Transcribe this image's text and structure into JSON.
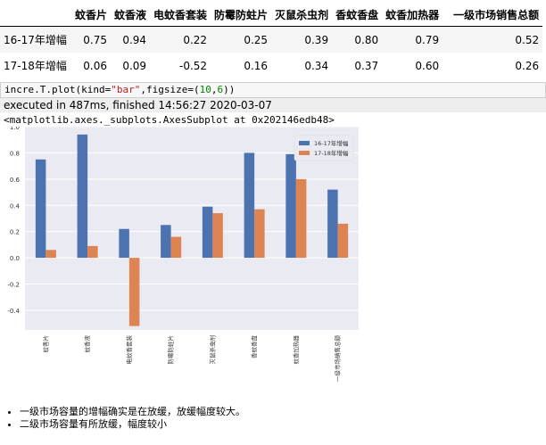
{
  "table": {
    "columns": [
      "蚊香片",
      "蚊香液",
      "电蚊香套装",
      "防霉防蛀片",
      "灭鼠杀虫剂",
      "香蚊香盘",
      "蚊香加热器",
      "一级市场销售总额"
    ],
    "rows": [
      {
        "label": "16-17年增幅",
        "values": [
          "0.75",
          "0.94",
          "0.22",
          "0.25",
          "0.39",
          "0.80",
          "0.79",
          "0.52"
        ]
      },
      {
        "label": "17-18年增幅",
        "values": [
          "0.06",
          "0.09",
          "-0.52",
          "0.16",
          "0.34",
          "0.37",
          "0.60",
          "0.26"
        ]
      }
    ]
  },
  "code": {
    "prefix": "incre.T.plot(kind=",
    "str_arg": "\"bar\"",
    "middle": ",figsize=(",
    "n1": "10",
    "comma": ",",
    "n2": "6",
    "suffix": "))"
  },
  "exec_info": "executed in 487ms, finished 14:56:27 2020-03-07",
  "output_repr": "<matplotlib.axes._subplots.AxesSubplot at 0x202146edb48>",
  "chart_data": {
    "type": "bar",
    "categories": [
      "蚊香片",
      "蚊香液",
      "电蚊香套装",
      "防霉防蛀片",
      "灭鼠杀虫剂",
      "香蚊香盘",
      "蚊香加热器",
      "一级市场销售总额"
    ],
    "series": [
      {
        "name": "16-17年增幅",
        "values": [
          0.75,
          0.94,
          0.22,
          0.25,
          0.39,
          0.8,
          0.79,
          0.52
        ],
        "color": "#4c72b0"
      },
      {
        "name": "17-18年增幅",
        "values": [
          0.06,
          0.09,
          -0.52,
          0.16,
          0.34,
          0.37,
          0.6,
          0.26
        ],
        "color": "#dd8452"
      }
    ],
    "yticks": [
      "1.0",
      "0.8",
      "0.6",
      "0.4",
      "0.2",
      "0.0",
      "-0.2",
      "-0.4"
    ],
    "ylim": [
      -0.55,
      1.0
    ],
    "grid": true,
    "legend": "top-right",
    "background": "#eaeaf2"
  },
  "notes": [
    "一级市场容量的增幅确实是在放缓，放缓幅度较大。",
    "二级市场容量有所放缓，幅度较小"
  ]
}
